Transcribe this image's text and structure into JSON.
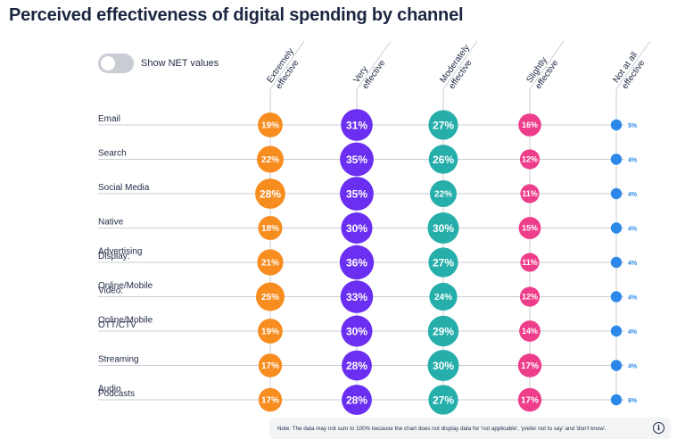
{
  "title": "Perceived effectiveness of digital spending by channel",
  "toggle": {
    "label": "Show NET values",
    "on": false
  },
  "note": "Note: The data may not sum to 100% because the chart does not display data for 'not applicable', 'prefer not to say' and 'don't know'.",
  "colors": {
    "Extremely effective": "#f78c1f",
    "Very effective": "#6a2ff0",
    "Moderately effective": "#26aeab",
    "Slightly effective": "#ee3d8b",
    "Not at all effective": "#2c88e8",
    "small_label": "#2c88e8",
    "grid": "#c9cdd3"
  },
  "chart_data": {
    "type": "bubble-matrix",
    "title": "Perceived effectiveness of digital spending by channel",
    "value_suffix": "%",
    "columns": [
      [
        "Extremely",
        "effective"
      ],
      [
        "Very",
        "effective"
      ],
      [
        "Moderately",
        "effective"
      ],
      [
        "Slightly",
        "effective"
      ],
      [
        "Not at all",
        "effective"
      ]
    ],
    "series_names": [
      "Extremely effective",
      "Very effective",
      "Moderately effective",
      "Slightly effective",
      "Not at all effective"
    ],
    "rows": [
      {
        "label": [
          "Email"
        ],
        "values": [
          19,
          31,
          27,
          16,
          5
        ]
      },
      {
        "label": [
          "Search"
        ],
        "values": [
          22,
          35,
          26,
          12,
          4
        ]
      },
      {
        "label": [
          "Social Media"
        ],
        "values": [
          28,
          35,
          22,
          11,
          4
        ]
      },
      {
        "label": [
          "Native",
          "Advertising"
        ],
        "values": [
          18,
          30,
          30,
          15,
          4
        ]
      },
      {
        "label": [
          "Display:",
          "Online/Mobile"
        ],
        "values": [
          21,
          36,
          27,
          11,
          4
        ]
      },
      {
        "label": [
          "Video:",
          "Online/Mobile"
        ],
        "values": [
          25,
          33,
          24,
          12,
          4
        ]
      },
      {
        "label": [
          "OTT/CTV"
        ],
        "values": [
          19,
          30,
          29,
          14,
          4
        ]
      },
      {
        "label": [
          "Streaming",
          "Audio"
        ],
        "values": [
          17,
          28,
          30,
          17,
          4
        ]
      },
      {
        "label": [
          "Podcasts"
        ],
        "values": [
          17,
          28,
          27,
          17,
          6
        ]
      }
    ]
  }
}
